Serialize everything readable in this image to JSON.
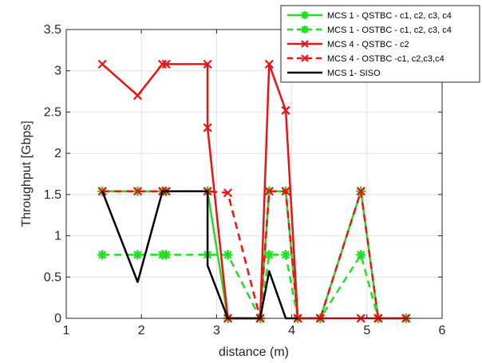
{
  "chart_data": {
    "type": "line",
    "xlabel": "distance (m)",
    "ylabel": "Throughput [Gbps]",
    "xlim": [
      1,
      6
    ],
    "ylim": [
      0,
      3.5
    ],
    "xticks": [
      1,
      2,
      3,
      4,
      5,
      6
    ],
    "yticks": [
      0,
      0.5,
      1,
      1.5,
      2,
      2.5,
      3,
      3.5
    ],
    "xtick_labels": [
      "1",
      "2",
      "3",
      "4",
      "5",
      "6"
    ],
    "ytick_labels": [
      "0",
      "0.5",
      "1",
      "1.5",
      "2",
      "2.5",
      "3",
      "3.5"
    ],
    "grid": true,
    "legend_position": "top-right",
    "series": [
      {
        "name": "MCS 1 - QSTBC - c1, c2, c3, c4",
        "color": "#22dd22",
        "line": "solid",
        "marker": "asterisk",
        "x": [
          1.48,
          1.95,
          2.28,
          2.33,
          2.88,
          3.15,
          3.58,
          3.7,
          3.92,
          4.08,
          4.38,
          4.92,
          5.15,
          5.52
        ],
        "y": [
          1.54,
          1.54,
          1.54,
          1.54,
          1.54,
          0,
          0,
          1.54,
          1.54,
          0,
          0,
          1.54,
          0,
          0
        ]
      },
      {
        "name": "MCS 1 - OSTBC - c1, c2, c3, c4",
        "color": "#22dd22",
        "line": "dashed",
        "marker": "asterisk",
        "x": [
          1.48,
          1.95,
          2.28,
          2.33,
          2.88,
          3.15,
          3.58,
          3.7,
          3.92,
          4.08,
          4.38,
          4.92,
          5.15,
          5.52
        ],
        "y": [
          0.77,
          0.77,
          0.77,
          0.77,
          0.77,
          0.77,
          0,
          0.77,
          0.77,
          0,
          0,
          0.77,
          0,
          0
        ]
      },
      {
        "name": "MCS 4 - QSTBC - c2",
        "color": "#ee1111",
        "line": "solid",
        "marker": "x",
        "x": [
          1.48,
          1.95,
          2.28,
          2.33,
          2.88,
          2.88,
          3.15,
          3.58,
          3.7,
          3.92,
          4.08,
          4.38,
          4.92,
          5.15,
          5.52
        ],
        "y": [
          3.08,
          2.7,
          3.08,
          3.08,
          3.08,
          2.31,
          0,
          0,
          3.08,
          2.52,
          0,
          0,
          0,
          0,
          0
        ]
      },
      {
        "name": "MCS 4 - OSTBC -c1, c2,c3,c4",
        "color": "#ee1111",
        "line": "dashed",
        "marker": "x",
        "x": [
          1.48,
          1.95,
          2.28,
          2.33,
          2.88,
          3.15,
          3.58,
          3.7,
          3.92,
          4.08,
          4.38,
          4.92,
          5.15,
          5.52
        ],
        "y": [
          1.54,
          1.54,
          1.54,
          1.54,
          1.54,
          1.52,
          0,
          1.54,
          1.54,
          0,
          0,
          1.54,
          0,
          0
        ]
      },
      {
        "name": "MCS 1- SISO",
        "color": "#000000",
        "line": "solid",
        "marker": "none",
        "x": [
          1.48,
          1.95,
          2.28,
          2.88,
          2.88,
          3.15,
          3.58,
          3.7,
          3.92,
          4.08
        ],
        "y": [
          1.54,
          0.44,
          1.54,
          1.54,
          0.64,
          0,
          0,
          0.57,
          0,
          0
        ]
      }
    ]
  }
}
